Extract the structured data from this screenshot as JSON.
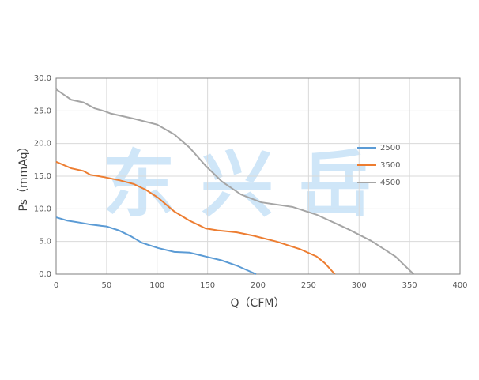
{
  "chart_data": {
    "type": "line",
    "watermark": "东 兴 岳",
    "xlabel": "Q（CFM）",
    "ylabel": "Ps（mmAq）",
    "xlim": [
      0,
      400
    ],
    "xticks": [
      0,
      50,
      100,
      150,
      200,
      250,
      300,
      350,
      400
    ],
    "ylim": [
      0,
      30
    ],
    "yticks": [
      {
        "value": 0,
        "label": "0.0"
      },
      {
        "value": 5,
        "label": "5.0"
      },
      {
        "value": 10,
        "label": "10.0"
      },
      {
        "value": 15,
        "label": "15.0"
      },
      {
        "value": 20,
        "label": "20.0"
      },
      {
        "value": 25,
        "label": "25.0"
      },
      {
        "value": 30,
        "label": "30.0"
      }
    ],
    "grid": true,
    "legend": "right",
    "series": [
      {
        "name": "2500",
        "color": "#5b9bd5",
        "x": [
          0,
          11,
          23,
          34,
          50,
          62,
          74,
          85,
          101,
          117,
          132,
          148,
          164,
          179,
          198
        ],
        "values": [
          8.7,
          8.2,
          7.9,
          7.6,
          7.3,
          6.7,
          5.8,
          4.8,
          4.0,
          3.4,
          3.3,
          2.7,
          2.1,
          1.3,
          0
        ]
      },
      {
        "name": "3500",
        "color": "#ed7d31",
        "x": [
          0,
          15,
          27,
          34,
          46,
          62,
          77,
          89,
          101,
          117,
          132,
          148,
          160,
          179,
          195,
          218,
          242,
          258,
          266,
          276
        ],
        "values": [
          17.2,
          16.2,
          15.8,
          15.2,
          14.9,
          14.4,
          13.8,
          12.9,
          11.7,
          9.6,
          8.2,
          7.0,
          6.7,
          6.4,
          5.9,
          5.0,
          3.8,
          2.7,
          1.7,
          0
        ]
      },
      {
        "name": "4500",
        "color": "#a5a5a5",
        "x": [
          0,
          15,
          27,
          38,
          49,
          54,
          77,
          100,
          117,
          132,
          148,
          164,
          183,
          203,
          234,
          258,
          289,
          312,
          336,
          354
        ],
        "values": [
          28.3,
          26.7,
          26.3,
          25.4,
          24.9,
          24.6,
          23.8,
          22.9,
          21.4,
          19.4,
          16.6,
          14.2,
          12.2,
          11.0,
          10.3,
          9.1,
          6.9,
          5.1,
          2.7,
          0
        ]
      }
    ]
  }
}
